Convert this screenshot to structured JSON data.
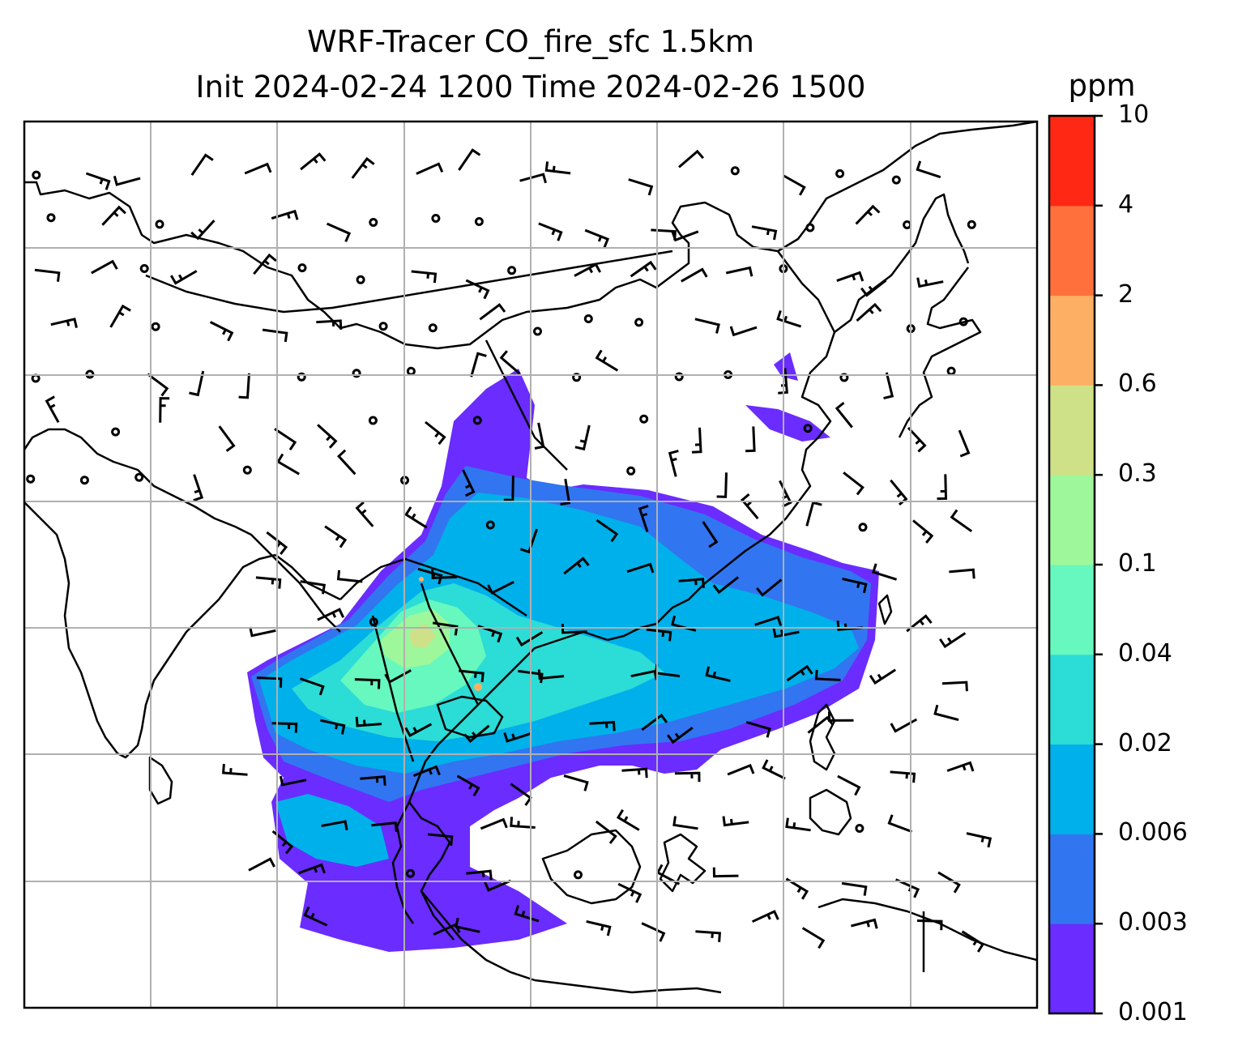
{
  "title": {
    "line1": "WRF-Tracer CO_fire_sfc 1.5km",
    "line2": "Init 2024-02-24 1200 Time 2024-02-26 1500"
  },
  "colorbar": {
    "unit": "ppm",
    "ticks": [
      "0.001",
      "0.003",
      "0.006",
      "0.02",
      "0.04",
      "0.1",
      "0.3",
      "0.6",
      "2",
      "4",
      "10"
    ],
    "colors": [
      "#6a2cff",
      "#3275f0",
      "#00b0ea",
      "#2cdcd6",
      "#66f8be",
      "#9ef79a",
      "#cee188",
      "#fdb063",
      "#ff703c",
      "#ff2814"
    ]
  },
  "map": {
    "colors": {
      "frame": "#000000",
      "grid": "#b0b0b0",
      "coast": "#000000",
      "barb": "#000000"
    }
  }
}
